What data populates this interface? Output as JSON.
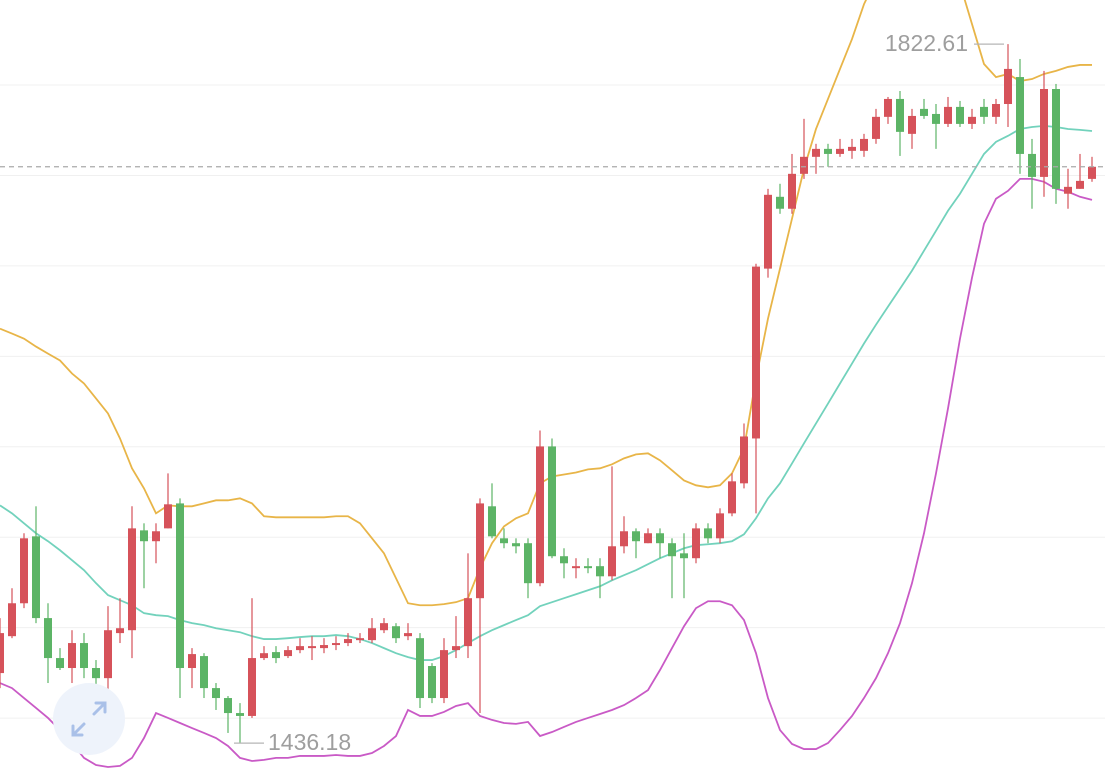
{
  "chart_data": {
    "type": "candlestick",
    "up_color": "#d6525a",
    "down_color": "#5cb466",
    "ylim": [
      1418,
      1847
    ],
    "yticks": [
      1450,
      1500,
      1550,
      1600,
      1650,
      1700,
      1750,
      1800
    ],
    "grid": true,
    "open": [
      1474.9,
      1495.3,
      1513.5,
      1550.5,
      1505.3,
      1483.2,
      1477.7,
      1491.5,
      1477.7,
      1472.1,
      1497.0,
      1498.6,
      1553.8,
      1547.8,
      1554.9,
      1568.7,
      1477.7,
      1484.3,
      1466.6,
      1461.1,
      1452.8,
      1451.2,
      1483.2,
      1486.5,
      1484.3,
      1487.6,
      1488.7,
      1488.7,
      1490.4,
      1491.5,
      1493.1,
      1493.1,
      1498.6,
      1500.8,
      1495.3,
      1494.2,
      1478.8,
      1461.1,
      1487.6,
      1489.8,
      1516.3,
      1567.1,
      1549.4,
      1546.7,
      1546.7,
      1524.6,
      1600.2,
      1539.5,
      1532.9,
      1534.0,
      1534.0,
      1528.4,
      1545.0,
      1553.3,
      1546.7,
      1552.2,
      1546.7,
      1541.1,
      1538.4,
      1554.9,
      1549.4,
      1563.2,
      1579.8,
      1604.6,
      1698.5,
      1738.2,
      1731.6,
      1750.9,
      1760.3,
      1764.7,
      1761.9,
      1763.6,
      1763.6,
      1770.2,
      1782.4,
      1792.3,
      1773.0,
      1786.8,
      1784.0,
      1778.5,
      1787.9,
      1778.5,
      1787.9,
      1782.4,
      1789.5,
      1804.4,
      1761.9,
      1749.2,
      1797.8,
      1739.9,
      1742.6,
      1748.1
    ],
    "high": [
      1505.3,
      1521.8,
      1552.2,
      1567.1,
      1513.5,
      1488.7,
      1498.6,
      1497.0,
      1482.1,
      1511.9,
      1516.3,
      1567.1,
      1557.7,
      1557.7,
      1585.3,
      1571.5,
      1488.7,
      1485.9,
      1469.4,
      1462.2,
      1458.3,
      1516.3,
      1489.8,
      1489.8,
      1489.8,
      1494.2,
      1495.3,
      1494.2,
      1495.3,
      1497.0,
      1497.0,
      1505.3,
      1505.3,
      1502.5,
      1502.5,
      1497.0,
      1480.4,
      1494.2,
      1506.4,
      1541.1,
      1571.5,
      1579.8,
      1554.9,
      1549.4,
      1549.4,
      1609.0,
      1604.6,
      1543.9,
      1538.4,
      1538.4,
      1538.4,
      1589.2,
      1561.6,
      1554.9,
      1554.9,
      1554.9,
      1549.4,
      1552.2,
      1557.7,
      1557.7,
      1566.0,
      1585.3,
      1612.9,
      1701.2,
      1742.6,
      1745.4,
      1761.9,
      1781.3,
      1767.5,
      1767.5,
      1770.2,
      1770.2,
      1773.0,
      1786.8,
      1793.4,
      1796.7,
      1786.8,
      1792.3,
      1789.5,
      1793.4,
      1791.2,
      1786.8,
      1792.3,
      1792.3,
      1822.61,
      1814.4,
      1770.2,
      1807.8,
      1800.6,
      1753.7,
      1761.9,
      1760.3
    ],
    "low": [
      1466.6,
      1494.2,
      1510.8,
      1502.5,
      1469.4,
      1476.6,
      1469.4,
      1472.1,
      1466.6,
      1444.5,
      1491.5,
      1483.2,
      1521.8,
      1535.6,
      1554.9,
      1461.1,
      1466.6,
      1461.1,
      1454.5,
      1441.8,
      1436.18,
      1450.1,
      1482.1,
      1480.4,
      1483.2,
      1485.9,
      1482.1,
      1485.9,
      1487.6,
      1489.8,
      1491.5,
      1491.5,
      1497.0,
      1491.5,
      1493.1,
      1455.6,
      1458.3,
      1458.3,
      1483.2,
      1483.2,
      1452.8,
      1549.4,
      1543.9,
      1541.1,
      1516.3,
      1522.9,
      1538.4,
      1527.3,
      1527.3,
      1530.1,
      1516.3,
      1526.2,
      1541.1,
      1538.4,
      1546.7,
      1538.4,
      1516.3,
      1516.3,
      1535.6,
      1546.7,
      1546.7,
      1561.6,
      1577.0,
      1563.2,
      1693.5,
      1728.8,
      1728.8,
      1748.1,
      1750.9,
      1754.8,
      1760.3,
      1759.2,
      1760.3,
      1767.5,
      1778.5,
      1760.8,
      1764.7,
      1781.3,
      1764.7,
      1776.8,
      1776.8,
      1775.7,
      1778.5,
      1778.5,
      1776.8,
      1750.9,
      1731.6,
      1738.2,
      1734.3,
      1731.6,
      1742.6,
      1746.5
    ],
    "close": [
      1497.0,
      1513.5,
      1549.4,
      1505.3,
      1483.2,
      1477.7,
      1491.5,
      1477.7,
      1472.1,
      1498.6,
      1499.7,
      1554.9,
      1547.8,
      1553.3,
      1568.2,
      1477.7,
      1485.4,
      1466.6,
      1461.1,
      1452.8,
      1451.2,
      1483.2,
      1485.9,
      1483.2,
      1487.6,
      1489.8,
      1489.8,
      1490.4,
      1491.5,
      1493.7,
      1494.2,
      1499.7,
      1502.5,
      1494.2,
      1497.0,
      1461.1,
      1461.1,
      1487.6,
      1489.8,
      1516.3,
      1568.7,
      1550.5,
      1546.7,
      1545.0,
      1524.6,
      1600.2,
      1539.5,
      1535.6,
      1534.0,
      1532.9,
      1528.4,
      1545.0,
      1553.3,
      1547.8,
      1552.2,
      1546.7,
      1539.5,
      1538.4,
      1554.9,
      1549.4,
      1563.2,
      1580.9,
      1605.7,
      1699.6,
      1739.3,
      1731.6,
      1750.9,
      1760.3,
      1764.7,
      1761.9,
      1764.7,
      1765.8,
      1770.2,
      1782.4,
      1792.3,
      1774.1,
      1782.9,
      1782.9,
      1778.5,
      1787.9,
      1778.5,
      1782.4,
      1782.4,
      1789.5,
      1808.9,
      1761.9,
      1749.2,
      1797.8,
      1742.6,
      1743.7,
      1747.0,
      1754.8
    ],
    "bands": [
      {
        "color": "#e8b548",
        "values": [
          1665.3,
          1662.6,
          1659.8,
          1655.4,
          1651.5,
          1647.7,
          1640.5,
          1635.0,
          1626.7,
          1618.4,
          1604.6,
          1588.1,
          1577.0,
          1563.2,
          1567.6,
          1567.1,
          1567.1,
          1568.7,
          1570.4,
          1570.4,
          1571.5,
          1568.7,
          1561.6,
          1561.0,
          1561.0,
          1561.0,
          1561.0,
          1561.0,
          1561.6,
          1561.6,
          1557.7,
          1549.4,
          1541.1,
          1527.3,
          1513.5,
          1512.4,
          1512.4,
          1513.0,
          1514.1,
          1516.3,
          1532.9,
          1546.7,
          1556.0,
          1560.5,
          1563.2,
          1579.8,
          1583.6,
          1584.7,
          1585.8,
          1587.5,
          1588.1,
          1590.3,
          1593.6,
          1595.8,
          1596.4,
          1592.5,
          1587.0,
          1581.4,
          1578.7,
          1577.6,
          1578.7,
          1585.3,
          1599.1,
          1637.7,
          1670.9,
          1698.5,
          1726.1,
          1753.7,
          1775.7,
          1792.3,
          1808.9,
          1825.4,
          1844.7,
          1858.5,
          1869.6,
          1877.9,
          1880.6,
          1880.6,
          1875.1,
          1866.8,
          1855.8,
          1833.7,
          1811.6,
          1804.4,
          1806.1,
          1802.2,
          1803.3,
          1806.1,
          1807.8,
          1810.0,
          1811.1,
          1811.1
        ]
      },
      {
        "color": "#72d2bc",
        "values": [
          1567.6,
          1563.2,
          1557.7,
          1552.2,
          1547.8,
          1542.8,
          1537.3,
          1531.8,
          1524.6,
          1518.0,
          1515.2,
          1512.4,
          1508.0,
          1506.9,
          1506.4,
          1504.2,
          1502.5,
          1501.4,
          1499.7,
          1498.6,
          1497.5,
          1495.3,
          1493.7,
          1493.7,
          1494.2,
          1494.8,
          1495.3,
          1495.3,
          1495.9,
          1495.3,
          1493.7,
          1491.5,
          1488.7,
          1485.9,
          1483.7,
          1482.1,
          1482.1,
          1484.3,
          1487.6,
          1491.5,
          1495.3,
          1498.6,
          1501.4,
          1504.2,
          1506.9,
          1511.9,
          1514.1,
          1516.3,
          1518.5,
          1520.7,
          1522.9,
          1526.2,
          1529.0,
          1531.8,
          1535.1,
          1538.4,
          1541.1,
          1543.9,
          1545.6,
          1546.1,
          1546.7,
          1547.8,
          1551.6,
          1560.5,
          1571.5,
          1579.8,
          1590.8,
          1601.9,
          1612.9,
          1623.9,
          1635.0,
          1646.0,
          1657.1,
          1667.5,
          1677.5,
          1687.4,
          1697.4,
          1708.4,
          1719.4,
          1730.5,
          1739.9,
          1750.9,
          1761.9,
          1768.6,
          1771.9,
          1775.7,
          1776.8,
          1777.4,
          1776.8,
          1775.7,
          1775.2,
          1774.6
        ]
      },
      {
        "color": "#c95ac6",
        "values": [
          1469.4,
          1466.6,
          1461.1,
          1455.6,
          1450.1,
          1443.4,
          1436.2,
          1428.0,
          1424.1,
          1423.0,
          1423.6,
          1428.0,
          1439.0,
          1452.8,
          1450.1,
          1447.3,
          1444.5,
          1441.8,
          1439.0,
          1434.6,
          1428.0,
          1426.3,
          1426.9,
          1428.0,
          1428.0,
          1429.1,
          1429.1,
          1429.1,
          1429.6,
          1429.1,
          1429.1,
          1430.7,
          1434.6,
          1440.1,
          1454.5,
          1451.2,
          1451.2,
          1453.4,
          1456.7,
          1458.3,
          1451.2,
          1449.0,
          1447.3,
          1446.8,
          1447.9,
          1440.1,
          1442.3,
          1445.1,
          1447.9,
          1450.1,
          1452.3,
          1454.5,
          1457.2,
          1461.1,
          1465.5,
          1476.6,
          1488.7,
          1500.8,
          1510.8,
          1514.6,
          1514.6,
          1512.4,
          1504.2,
          1485.9,
          1461.1,
          1443.4,
          1435.7,
          1432.9,
          1432.9,
          1436.2,
          1443.4,
          1451.2,
          1461.1,
          1472.1,
          1485.9,
          1502.5,
          1524.6,
          1552.2,
          1585.3,
          1621.2,
          1659.8,
          1693.5,
          1723.3,
          1737.1,
          1741.5,
          1748.1,
          1748.1,
          1746.5,
          1742.6,
          1741.0,
          1738.2,
          1736.5
        ]
      }
    ]
  }
}
